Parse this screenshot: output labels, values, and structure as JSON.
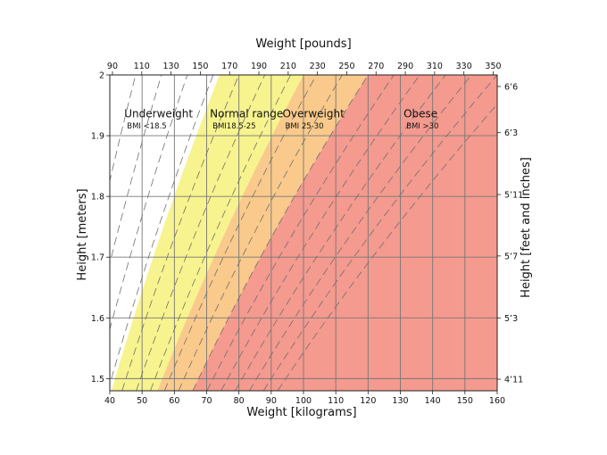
{
  "chart_data": {
    "type": "area",
    "title": "",
    "xlabel": "Weight [kilograms]",
    "ylabel": "Height [meters]",
    "x2label": "Weight [pounds]",
    "y2label": "Height [feet and inches]",
    "xlim": [
      40,
      160
    ],
    "ylim": [
      1.48,
      2.0
    ],
    "x_ticks": [
      40,
      50,
      60,
      70,
      80,
      90,
      100,
      110,
      120,
      130,
      140,
      150,
      160
    ],
    "y_ticks": [
      1.5,
      1.6,
      1.7,
      1.8,
      1.9,
      2.0
    ],
    "y_tick_labels": [
      "1.5",
      "1.6",
      "1.7",
      "1.8",
      "1.9",
      "2"
    ],
    "pound_ticks": [
      90,
      110,
      130,
      150,
      170,
      190,
      210,
      230,
      250,
      270,
      290,
      310,
      330,
      350
    ],
    "feet_ticks": [
      {
        "label": "4’11",
        "meters": 1.499
      },
      {
        "label": "5’3",
        "meters": 1.6
      },
      {
        "label": "5’7",
        "meters": 1.702
      },
      {
        "label": "5’11",
        "meters": 1.803
      },
      {
        "label": "6’3",
        "meters": 1.905
      },
      {
        "label": "6’6",
        "meters": 1.981
      }
    ],
    "dashed_bmi_lines": [
      12,
      14,
      16,
      18,
      20,
      22,
      24,
      26,
      28,
      30,
      32,
      34,
      36,
      38,
      40,
      42
    ],
    "regions": [
      {
        "name": "Underweight",
        "bmi_label": "BMI <18.5",
        "bmi_min": 0,
        "bmi_max": 18.5,
        "color": "#ffffff",
        "label_x_kg": 44.5,
        "label_y_m": 1.93,
        "sub_y_m": 1.912
      },
      {
        "name": "Normal range",
        "bmi_label": "BMI18.5-25",
        "bmi_min": 18.5,
        "bmi_max": 25,
        "color": "#f7f38e",
        "label_x_kg": 71,
        "label_y_m": 1.93,
        "sub_y_m": 1.912
      },
      {
        "name": "Overweight",
        "bmi_label": "BMI 25-30",
        "bmi_min": 25,
        "bmi_max": 30,
        "color": "#f9ca8c",
        "label_x_kg": 93.5,
        "label_y_m": 1.93,
        "sub_y_m": 1.912
      },
      {
        "name": "Obese",
        "bmi_label": "BMI >30",
        "bmi_min": 30,
        "bmi_max": 200,
        "color": "#f49a8f",
        "label_x_kg": 131,
        "label_y_m": 1.93,
        "sub_y_m": 1.912
      }
    ]
  }
}
